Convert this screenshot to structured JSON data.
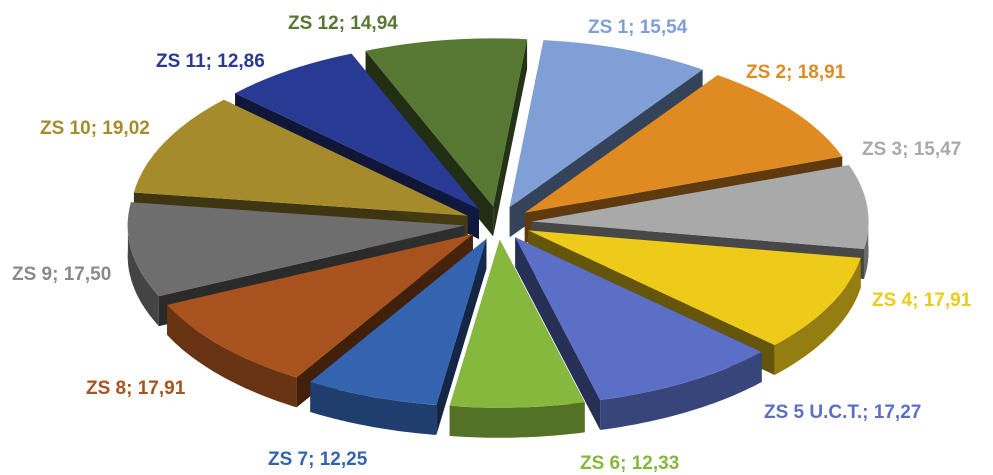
{
  "chart_data": {
    "type": "pie",
    "style": "3d-exploded",
    "title": "",
    "legend": "none",
    "categories": [
      "ZS 1",
      "ZS 2",
      "ZS 3",
      "ZS 4",
      "ZS 5 U.C.T.",
      "ZS 6",
      "ZS 7",
      "ZS 8",
      "ZS 9",
      "ZS 10",
      "ZS 11",
      "ZS 12"
    ],
    "values": [
      15.54,
      18.91,
      15.47,
      17.91,
      17.27,
      12.33,
      12.25,
      17.91,
      17.5,
      19.02,
      12.86,
      14.94
    ],
    "labels": [
      "ZS 1; 15,54",
      "ZS 2; 18,91",
      "ZS 3; 15,47",
      "ZS 4; 17,91",
      "ZS 5 U.C.T.; 17,27",
      "ZS 6; 12,33",
      "ZS 7; 12,25",
      "ZS 8; 17,91",
      "ZS 9; 17,50",
      "ZS 10; 19,02",
      "ZS 11; 12,86",
      "ZS 12; 14,94"
    ],
    "colors": [
      "#7f9fd6",
      "#e08b22",
      "#a9a9a9",
      "#edcb18",
      "#5b6fc7",
      "#86b83d",
      "#3464b0",
      "#a8521e",
      "#6e6e6e",
      "#a68b2d",
      "#283a94",
      "#567832"
    ],
    "label_colors": [
      "#7f9fd6",
      "#e08b22",
      "#a9a9a9",
      "#edcb18",
      "#5b6fc7",
      "#86b83d",
      "#3464b0",
      "#a8521e",
      "#8a8a8a",
      "#a68b2d",
      "#283a94",
      "#567832"
    ]
  }
}
